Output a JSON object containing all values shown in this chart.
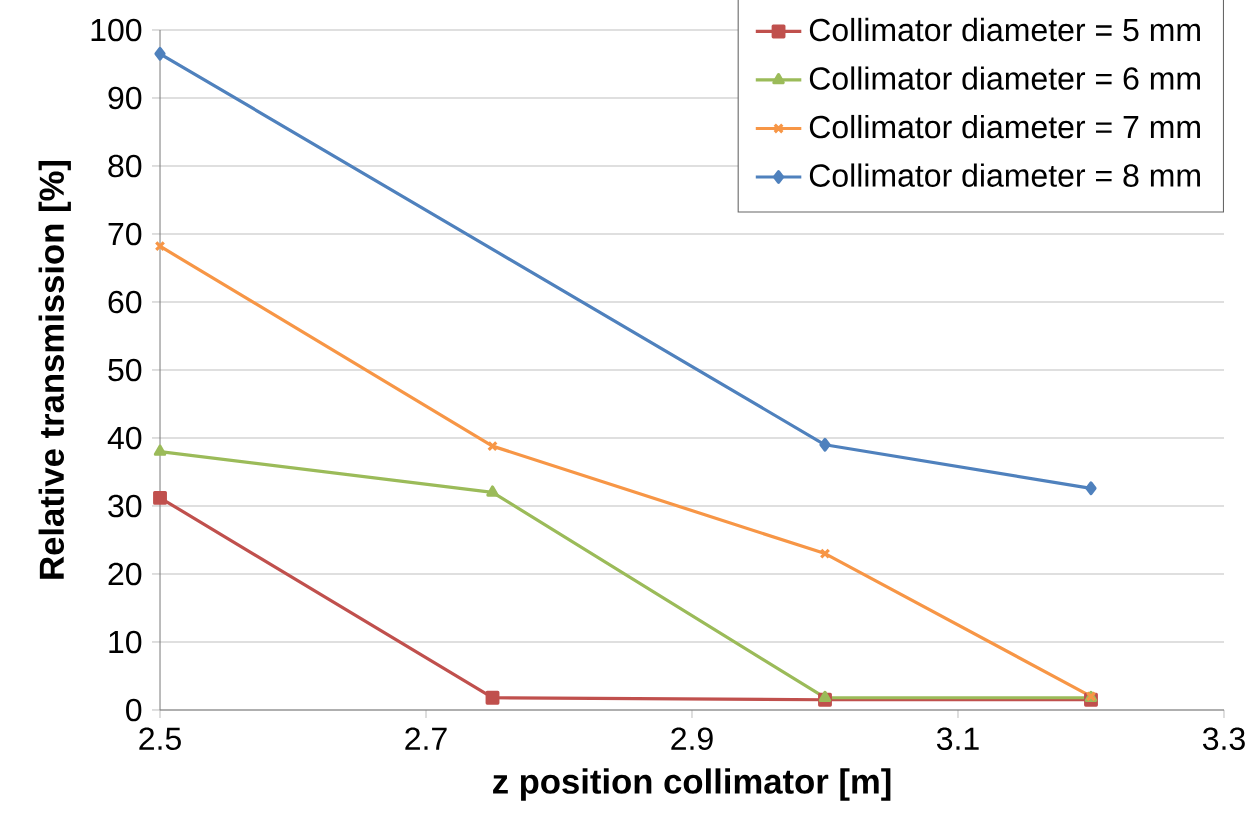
{
  "chart_data": {
    "type": "line",
    "xlabel": "z position collimator [m]",
    "ylabel": "Relative transmission [%]",
    "x": [
      2.5,
      2.75,
      3.0,
      3.2
    ],
    "series": [
      {
        "name": "Collimator diameter = 5 mm",
        "color": "#c0504d",
        "marker": "square",
        "values": [
          31.2,
          1.8,
          1.5,
          1.5
        ]
      },
      {
        "name": "Collimator diameter = 6 mm",
        "color": "#9bbb59",
        "marker": "triangle",
        "values": [
          38,
          32,
          1.8,
          1.8
        ]
      },
      {
        "name": "Collimator diameter = 7 mm",
        "color": "#f79646",
        "marker": "cross",
        "values": [
          68.2,
          38.8,
          23,
          2
        ]
      },
      {
        "name": "Collimator diameter = 8 mm",
        "color": "#4f81bd",
        "marker": "diamond",
        "x": [
          2.5,
          3.0,
          3.2
        ],
        "values": [
          96.5,
          39,
          32.6
        ]
      }
    ],
    "xlim": [
      2.5,
      3.3
    ],
    "xticks": [
      2.5,
      2.7,
      2.9,
      3.1,
      3.3
    ],
    "ylim": [
      0,
      100
    ],
    "yticks": [
      0,
      10,
      20,
      30,
      40,
      50,
      60,
      70,
      80,
      90,
      100
    ],
    "grid": "y",
    "legend": "top right",
    "line_style": "solid"
  }
}
